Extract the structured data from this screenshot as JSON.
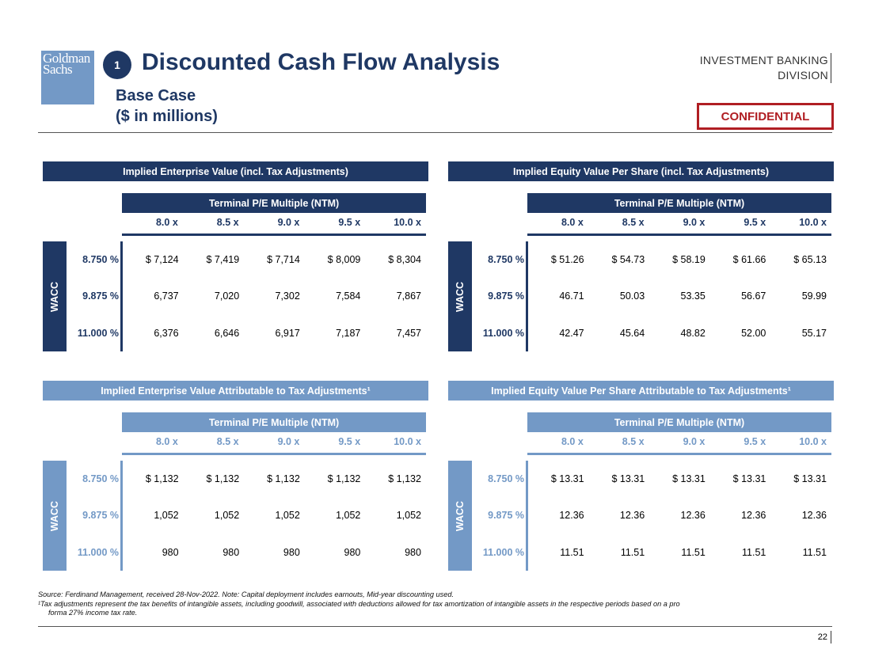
{
  "header": {
    "logo_line1": "Goldman",
    "logo_line2": "Sachs",
    "section_number": "1",
    "title": "Discounted Cash Flow Analysis",
    "subtitle_line1": "Base Case",
    "subtitle_line2": "($ in millions)",
    "division_line1": "INVESTMENT BANKING",
    "division_line2": "DIVISION",
    "confidential": "CONFIDENTIAL"
  },
  "colors": {
    "dark_navy": "#1f3864",
    "light_blue": "#7399c6",
    "confidential_red": "#b01e23"
  },
  "panels": [
    {
      "title": "Implied Enterprise Value (incl. Tax Adjustments)",
      "subheader": "Terminal P/E Multiple (NTM)",
      "multiples": [
        "8.0 x",
        "8.5 x",
        "9.0 x",
        "9.5 x",
        "10.0 x"
      ],
      "axis_label": "WACC",
      "rows": [
        {
          "label": "8.750 %",
          "values": [
            "$ 7,124",
            "$ 7,419",
            "$ 7,714",
            "$ 8,009",
            "$ 8,304"
          ]
        },
        {
          "label": "9.875 %",
          "values": [
            "6,737",
            "7,020",
            "7,302",
            "7,584",
            "7,867"
          ]
        },
        {
          "label": "11.000 %",
          "values": [
            "6,376",
            "6,646",
            "6,917",
            "7,187",
            "7,457"
          ]
        }
      ]
    },
    {
      "title": "Implied Equity Value Per Share (incl. Tax Adjustments)",
      "subheader": "Terminal P/E Multiple (NTM)",
      "multiples": [
        "8.0 x",
        "8.5 x",
        "9.0 x",
        "9.5 x",
        "10.0 x"
      ],
      "axis_label": "WACC",
      "rows": [
        {
          "label": "8.750 %",
          "values": [
            "$ 51.26",
            "$ 54.73",
            "$ 58.19",
            "$ 61.66",
            "$ 65.13"
          ]
        },
        {
          "label": "9.875 %",
          "values": [
            "46.71",
            "50.03",
            "53.35",
            "56.67",
            "59.99"
          ]
        },
        {
          "label": "11.000 %",
          "values": [
            "42.47",
            "45.64",
            "48.82",
            "52.00",
            "55.17"
          ]
        }
      ]
    },
    {
      "title": "Implied Enterprise Value Attributable to Tax Adjustments¹",
      "subheader": "Terminal P/E Multiple (NTM)",
      "multiples": [
        "8.0 x",
        "8.5 x",
        "9.0 x",
        "9.5 x",
        "10.0 x"
      ],
      "axis_label": "WACC",
      "rows": [
        {
          "label": "8.750 %",
          "values": [
            "$ 1,132",
            "$ 1,132",
            "$ 1,132",
            "$ 1,132",
            "$ 1,132"
          ]
        },
        {
          "label": "9.875 %",
          "values": [
            "1,052",
            "1,052",
            "1,052",
            "1,052",
            "1,052"
          ]
        },
        {
          "label": "11.000 %",
          "values": [
            "980",
            "980",
            "980",
            "980",
            "980"
          ]
        }
      ]
    },
    {
      "title": "Implied Equity Value Per Share Attributable to Tax Adjustments¹",
      "subheader": "Terminal P/E Multiple (NTM)",
      "multiples": [
        "8.0 x",
        "8.5 x",
        "9.0 x",
        "9.5 x",
        "10.0 x"
      ],
      "axis_label": "WACC",
      "rows": [
        {
          "label": "8.750 %",
          "values": [
            "$ 13.31",
            "$ 13.31",
            "$ 13.31",
            "$ 13.31",
            "$ 13.31"
          ]
        },
        {
          "label": "9.875 %",
          "values": [
            "12.36",
            "12.36",
            "12.36",
            "12.36",
            "12.36"
          ]
        },
        {
          "label": "11.000 %",
          "values": [
            "11.51",
            "11.51",
            "11.51",
            "11.51",
            "11.51"
          ]
        }
      ]
    }
  ],
  "footer": {
    "source_note": "Source: Ferdinand Management, received 28-Nov-2022. Note: Capital deployment includes earnouts, Mid-year discounting used.",
    "footnote_line1": "¹Tax adjustments represent the tax benefits of intangible assets, including goodwill, associated with deductions allowed for tax amortization of intangible assets in the respective periods based on a pro",
    "footnote_line2": "forma 27% income tax rate.",
    "page_number": "22"
  }
}
